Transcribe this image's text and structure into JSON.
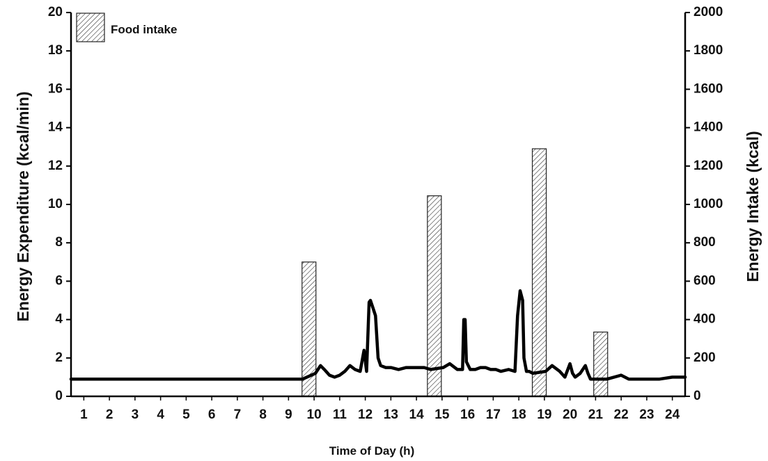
{
  "chart_data": {
    "type": "bar+line",
    "xlabel": "Time of Day (h)",
    "ylabel_left": "Energy Expenditure (kcal/min)",
    "ylabel_right": "Energy Intake (kcal)",
    "x_ticks": [
      1,
      2,
      3,
      4,
      5,
      6,
      7,
      8,
      9,
      10,
      11,
      12,
      13,
      14,
      15,
      16,
      17,
      18,
      19,
      20,
      21,
      22,
      23,
      24
    ],
    "xlim": [
      0.5,
      24.5
    ],
    "ylim_left": [
      0,
      20
    ],
    "ylim_right": [
      0,
      2000
    ],
    "y_ticks_left": [
      0,
      2,
      4,
      6,
      8,
      10,
      12,
      14,
      16,
      18,
      20
    ],
    "y_ticks_right": [
      0,
      200,
      400,
      600,
      800,
      1000,
      1200,
      1400,
      1600,
      1800,
      2000
    ],
    "legend": {
      "label": "Food intake",
      "position": "top-left"
    },
    "bars": {
      "name": "Food intake",
      "axis": "right",
      "items": [
        {
          "x": 9.8,
          "value": 700
        },
        {
          "x": 14.7,
          "value": 1045
        },
        {
          "x": 18.8,
          "value": 1290
        },
        {
          "x": 21.2,
          "value": 335
        }
      ]
    },
    "line": {
      "name": "Energy Expenditure",
      "axis": "left",
      "x": [
        0.5,
        1,
        2,
        3,
        4,
        5,
        6,
        7,
        8,
        9,
        9.55,
        10.05,
        10.25,
        10.4,
        10.6,
        10.8,
        11,
        11.2,
        11.4,
        11.6,
        11.8,
        11.95,
        12.05,
        12.15,
        12.2,
        12.3,
        12.4,
        12.5,
        12.6,
        12.8,
        13,
        13.3,
        13.6,
        14,
        14.3,
        14.55,
        15.05,
        15.3,
        15.6,
        15.8,
        15.85,
        15.9,
        15.95,
        16.1,
        16.3,
        16.5,
        16.7,
        16.9,
        17.1,
        17.3,
        17.6,
        17.85,
        17.95,
        18.05,
        18.15,
        18.2,
        18.3,
        18.4,
        18.55,
        19.05,
        19.3,
        19.6,
        19.8,
        20,
        20.1,
        20.2,
        20.4,
        20.6,
        20.7,
        20.8,
        21.45,
        22,
        22.3,
        22.6,
        23,
        23.5,
        24,
        24.5
      ],
      "y": [
        0.9,
        0.9,
        0.9,
        0.9,
        0.9,
        0.9,
        0.9,
        0.9,
        0.9,
        0.9,
        0.9,
        1.2,
        1.6,
        1.4,
        1.1,
        1.0,
        1.1,
        1.3,
        1.6,
        1.4,
        1.3,
        2.4,
        1.3,
        4.9,
        5.0,
        4.6,
        4.2,
        2.0,
        1.6,
        1.5,
        1.5,
        1.4,
        1.5,
        1.5,
        1.5,
        1.4,
        1.5,
        1.7,
        1.4,
        1.4,
        4.0,
        4.0,
        1.8,
        1.4,
        1.4,
        1.5,
        1.5,
        1.4,
        1.4,
        1.3,
        1.4,
        1.3,
        4.2,
        5.5,
        5.0,
        2.0,
        1.3,
        1.3,
        1.2,
        1.3,
        1.6,
        1.3,
        1.0,
        1.7,
        1.2,
        1.0,
        1.2,
        1.6,
        1.2,
        0.9,
        0.9,
        1.1,
        0.9,
        0.9,
        0.9,
        0.9,
        1.0,
        1.0
      ]
    }
  }
}
